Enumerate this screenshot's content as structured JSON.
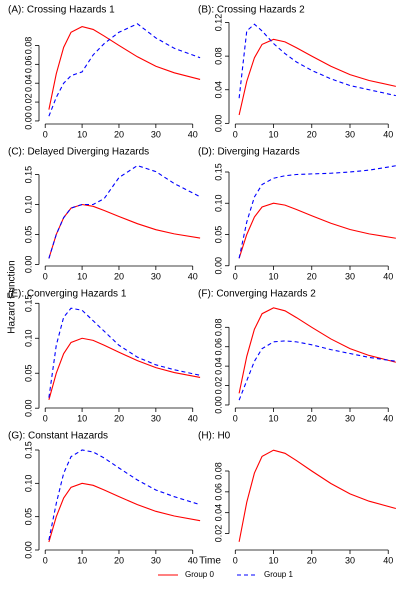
{
  "shared": {
    "xlabel": "Time",
    "ylabel": "Hazard Function"
  },
  "chart_data": [
    {
      "type": "line",
      "title": "(A): Crossing Hazards 1",
      "x": [
        1,
        3,
        5,
        7,
        10,
        13,
        16,
        20,
        25,
        30,
        35,
        42
      ],
      "series": [
        {
          "name": "Group 0",
          "color": "#ff0000",
          "dashed": false,
          "values": [
            0.012,
            0.05,
            0.078,
            0.094,
            0.1,
            0.097,
            0.09,
            0.08,
            0.068,
            0.058,
            0.051,
            0.044
          ]
        },
        {
          "name": "Group 1",
          "color": "#0000ff",
          "dashed": true,
          "values": [
            0.005,
            0.025,
            0.04,
            0.048,
            0.052,
            0.07,
            0.082,
            0.094,
            0.103,
            0.088,
            0.077,
            0.067
          ]
        }
      ],
      "xlim": [
        -0.6,
        43.6
      ],
      "ylim": [
        0.001,
        0.107
      ],
      "xticks": [
        0,
        10,
        20,
        30,
        40
      ],
      "yticks": [
        {
          "value": 0,
          "label": "0.00"
        },
        {
          "value": 0.02,
          "label": "0.02"
        },
        {
          "value": 0.04,
          "label": "0.04"
        },
        {
          "value": 0.06,
          "label": "0.06"
        },
        {
          "value": 0.08,
          "label": "0.08"
        }
      ]
    },
    {
      "type": "line",
      "title": "(B): Crossing Hazards 2",
      "x": [
        1,
        3,
        5,
        7,
        10,
        13,
        16,
        20,
        25,
        30,
        35,
        42
      ],
      "series": [
        {
          "name": "Group 0",
          "color": "#ff0000",
          "dashed": false,
          "values": [
            0.01,
            0.05,
            0.078,
            0.094,
            0.1,
            0.097,
            0.09,
            0.08,
            0.068,
            0.058,
            0.051,
            0.044
          ]
        },
        {
          "name": "Group 1",
          "color": "#0000ff",
          "dashed": true,
          "values": [
            0.03,
            0.11,
            0.118,
            0.11,
            0.095,
            0.083,
            0.073,
            0.063,
            0.053,
            0.045,
            0.04,
            0.033
          ]
        }
      ],
      "xlim": [
        -0.6,
        43.6
      ],
      "ylim": [
        0.004,
        0.123
      ],
      "xticks": [
        0,
        10,
        20,
        30,
        40
      ],
      "yticks": [
        {
          "value": 0,
          "label": "0.00"
        },
        {
          "value": 0.04,
          "label": "0.04"
        },
        {
          "value": 0.08,
          "label": "0.08"
        },
        {
          "value": 0.12,
          "label": "0.12"
        }
      ]
    },
    {
      "type": "line",
      "title": "(C): Delayed Diverging Hazards",
      "x": [
        1,
        3,
        5,
        7,
        10,
        13,
        16,
        20,
        25,
        30,
        35,
        42
      ],
      "series": [
        {
          "name": "Group 0",
          "color": "#ff0000",
          "dashed": false,
          "values": [
            0.01,
            0.05,
            0.078,
            0.094,
            0.1,
            0.097,
            0.09,
            0.08,
            0.068,
            0.058,
            0.051,
            0.044
          ]
        },
        {
          "name": "Group 1",
          "color": "#0000ff",
          "dashed": true,
          "values": [
            0.01,
            0.05,
            0.078,
            0.094,
            0.1,
            0.1,
            0.11,
            0.145,
            0.165,
            0.155,
            0.135,
            0.113
          ]
        }
      ],
      "xlim": [
        -0.6,
        43.6
      ],
      "ylim": [
        0.004,
        0.171
      ],
      "xticks": [
        0,
        10,
        20,
        30,
        40
      ],
      "yticks": [
        {
          "value": 0,
          "label": "0.00"
        },
        {
          "value": 0.05,
          "label": "0.05"
        },
        {
          "value": 0.1,
          "label": "0.10"
        },
        {
          "value": 0.15,
          "label": "0.15"
        }
      ]
    },
    {
      "type": "line",
      "title": "(D): Diverging Hazards",
      "x": [
        1,
        3,
        5,
        7,
        10,
        13,
        16,
        20,
        25,
        30,
        35,
        42
      ],
      "series": [
        {
          "name": "Group 0",
          "color": "#ff0000",
          "dashed": false,
          "values": [
            0.012,
            0.05,
            0.078,
            0.094,
            0.1,
            0.097,
            0.09,
            0.08,
            0.068,
            0.058,
            0.051,
            0.044
          ]
        },
        {
          "name": "Group 1",
          "color": "#0000ff",
          "dashed": true,
          "values": [
            0.012,
            0.07,
            0.11,
            0.13,
            0.14,
            0.144,
            0.146,
            0.147,
            0.148,
            0.15,
            0.153,
            0.16
          ]
        }
      ],
      "xlim": [
        -0.6,
        43.6
      ],
      "ylim": [
        0.006,
        0.166
      ],
      "xticks": [
        0,
        10,
        20,
        30,
        40
      ],
      "yticks": [
        {
          "value": 0,
          "label": "0.00"
        },
        {
          "value": 0.05,
          "label": "0.05"
        },
        {
          "value": 0.1,
          "label": "0.10"
        },
        {
          "value": 0.15,
          "label": "0.15"
        }
      ]
    },
    {
      "type": "line",
      "title": "(E): Converging Hazards 1",
      "x": [
        1,
        3,
        5,
        7,
        10,
        13,
        16,
        20,
        25,
        30,
        35,
        42
      ],
      "series": [
        {
          "name": "Group 0",
          "color": "#ff0000",
          "dashed": false,
          "values": [
            0.012,
            0.05,
            0.078,
            0.094,
            0.1,
            0.097,
            0.09,
            0.08,
            0.068,
            0.058,
            0.051,
            0.044
          ]
        },
        {
          "name": "Group 1",
          "color": "#0000ff",
          "dashed": true,
          "values": [
            0.015,
            0.09,
            0.13,
            0.143,
            0.14,
            0.125,
            0.11,
            0.09,
            0.073,
            0.062,
            0.055,
            0.047
          ]
        }
      ],
      "xlim": [
        -0.6,
        43.6
      ],
      "ylim": [
        0.006,
        0.149
      ],
      "xticks": [
        0,
        10,
        20,
        30,
        40
      ],
      "yticks": [
        {
          "value": 0,
          "label": "0.00"
        },
        {
          "value": 0.05,
          "label": "0.05"
        },
        {
          "value": 0.1,
          "label": "0.10"
        },
        {
          "value": 0.15,
          "label": "0.15"
        }
      ]
    },
    {
      "type": "line",
      "title": "(F): Converging Hazards 2",
      "x": [
        1,
        3,
        5,
        7,
        10,
        13,
        16,
        20,
        25,
        30,
        35,
        42
      ],
      "series": [
        {
          "name": "Group 0",
          "color": "#ff0000",
          "dashed": false,
          "values": [
            0.012,
            0.05,
            0.078,
            0.094,
            0.1,
            0.097,
            0.09,
            0.08,
            0.068,
            0.058,
            0.051,
            0.044
          ]
        },
        {
          "name": "Group 1",
          "color": "#0000ff",
          "dashed": true,
          "values": [
            0.005,
            0.025,
            0.045,
            0.058,
            0.065,
            0.066,
            0.065,
            0.062,
            0.057,
            0.053,
            0.049,
            0.045
          ]
        }
      ],
      "xlim": [
        -0.6,
        43.6
      ],
      "ylim": [
        0.001,
        0.104
      ],
      "xticks": [
        0,
        10,
        20,
        30,
        40
      ],
      "yticks": [
        {
          "value": 0,
          "label": "0.00"
        },
        {
          "value": 0.02,
          "label": "0.02"
        },
        {
          "value": 0.04,
          "label": "0.04"
        },
        {
          "value": 0.06,
          "label": "0.06"
        },
        {
          "value": 0.08,
          "label": "0.08"
        }
      ]
    },
    {
      "type": "line",
      "title": "(G): Constant Hazards",
      "x": [
        1,
        3,
        5,
        7,
        10,
        13,
        16,
        20,
        25,
        30,
        35,
        42
      ],
      "series": [
        {
          "name": "Group 0",
          "color": "#ff0000",
          "dashed": false,
          "values": [
            0.012,
            0.05,
            0.078,
            0.094,
            0.1,
            0.097,
            0.09,
            0.08,
            0.068,
            0.058,
            0.051,
            0.044
          ]
        },
        {
          "name": "Group 1",
          "color": "#0000ff",
          "dashed": true,
          "values": [
            0.015,
            0.07,
            0.115,
            0.14,
            0.15,
            0.147,
            0.138,
            0.123,
            0.105,
            0.09,
            0.08,
            0.068
          ]
        }
      ],
      "xlim": [
        -0.6,
        43.6
      ],
      "ylim": [
        0.006,
        0.156
      ],
      "xticks": [
        0,
        10,
        20,
        30,
        40
      ],
      "yticks": [
        {
          "value": 0,
          "label": "0.00"
        },
        {
          "value": 0.05,
          "label": "0.05"
        },
        {
          "value": 0.1,
          "label": "0.10"
        },
        {
          "value": 0.15,
          "label": "0.15"
        }
      ]
    },
    {
      "type": "line",
      "title": "(H): H0",
      "x": [
        1,
        3,
        5,
        7,
        10,
        13,
        16,
        20,
        25,
        30,
        35,
        42
      ],
      "series": [
        {
          "name": "Group 0",
          "color": "#ff0000",
          "dashed": false,
          "values": [
            0.012,
            0.05,
            0.078,
            0.094,
            0.1,
            0.097,
            0.09,
            0.08,
            0.068,
            0.058,
            0.051,
            0.044
          ]
        }
      ],
      "xlim": [
        -0.6,
        43.6
      ],
      "ylim": [
        0.008,
        0.104
      ],
      "xticks": [
        0,
        10,
        20,
        30,
        40
      ],
      "yticks": [
        {
          "value": 0.02,
          "label": "0.02"
        },
        {
          "value": 0.04,
          "label": "0.04"
        },
        {
          "value": 0.06,
          "label": "0.06"
        },
        {
          "value": 0.08,
          "label": "0.08"
        }
      ]
    }
  ]
}
